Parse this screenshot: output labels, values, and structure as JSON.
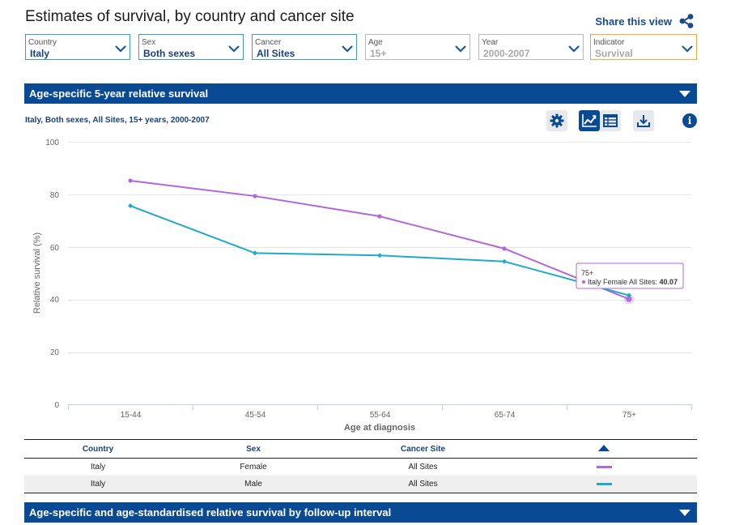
{
  "page": {
    "title": "Estimates of survival, by country and cancer site",
    "share_label": "Share this view"
  },
  "filters": [
    {
      "label": "Country",
      "value": "Italy",
      "state": "active"
    },
    {
      "label": "Sex",
      "value": "Both sexes",
      "state": "active"
    },
    {
      "label": "Cancer",
      "value": "All Sites",
      "state": "active"
    },
    {
      "label": "Age",
      "value": "15+",
      "state": "disabled"
    },
    {
      "label": "Year",
      "value": "2000-2007",
      "state": "disabled"
    },
    {
      "label": "Indicator",
      "value": "Survival",
      "state": "highlighted"
    }
  ],
  "section1": {
    "title": "Age-specific 5-year relative survival"
  },
  "section2": {
    "title": "Age-specific and age-standardised relative survival by follow-up interval"
  },
  "chart_subtitle": "Italy, Both sexes, All Sites, 15+ years, 2000-2007",
  "toolbar": {
    "settings_icon": "gear-icon",
    "chart_icon": "line-chart-icon",
    "table_icon": "table-icon",
    "download_icon": "download-icon",
    "info_icon": "info-icon"
  },
  "colors": {
    "female": "#b069db",
    "male": "#21a9c9",
    "header": "#0a4a95",
    "accent": "#1a3f7a"
  },
  "chart_data": {
    "type": "line",
    "categories": [
      "15-44",
      "45-54",
      "55-64",
      "65-74",
      "75+"
    ],
    "series": [
      {
        "name": "Italy Female All Sites",
        "values": [
          85.2,
          79.3,
          71.6,
          59.3,
          40.07
        ],
        "color": "#b069db"
      },
      {
        "name": "Italy Male All Sites",
        "values": [
          75.6,
          57.6,
          56.7,
          54.4,
          41.5
        ],
        "color": "#21a9c9"
      }
    ],
    "xlabel": "Age at diagnosis",
    "ylabel": "Relative survival (%)",
    "ylim": [
      0,
      100
    ],
    "yticks": [
      0,
      20,
      40,
      60,
      80,
      100
    ],
    "grid": true,
    "tooltip": {
      "category": "75+",
      "series": "Italy Female All Sites",
      "value": "40.07"
    }
  },
  "legend_table": {
    "headers": [
      "Country",
      "Sex",
      "Cancer Site"
    ],
    "rows": [
      {
        "country": "Italy",
        "sex": "Female",
        "site": "All Sites",
        "color": "#b069db"
      },
      {
        "country": "Italy",
        "sex": "Male",
        "site": "All Sites",
        "color": "#21a9c9"
      }
    ]
  }
}
